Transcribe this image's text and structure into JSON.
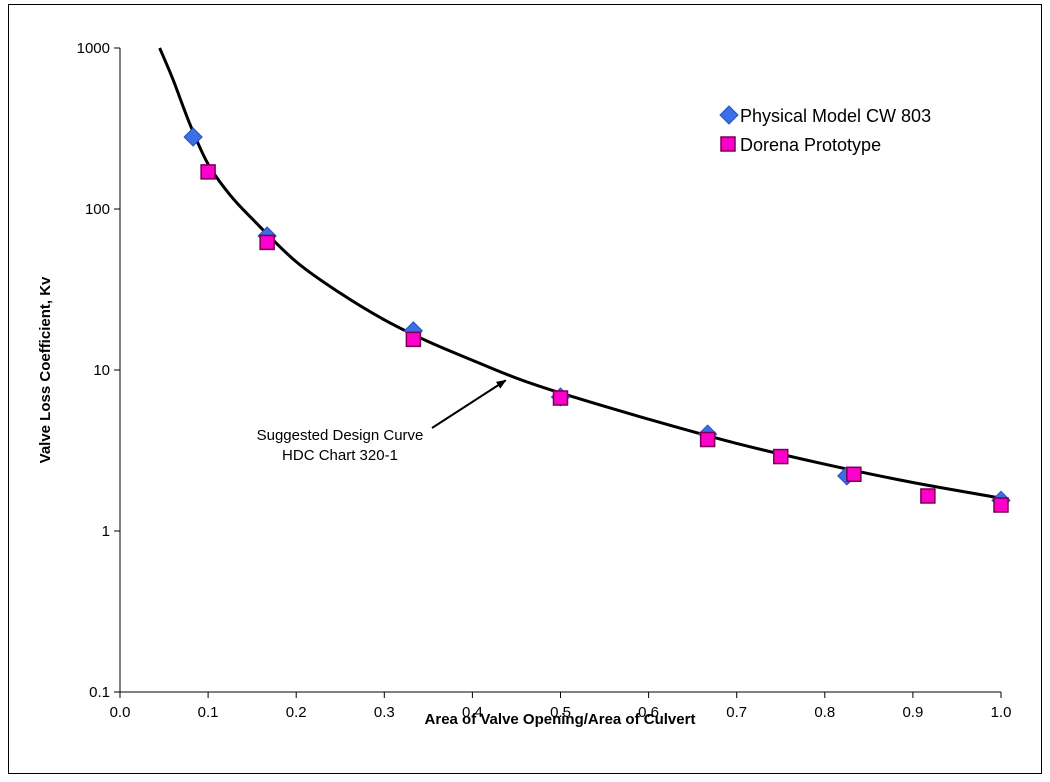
{
  "chart_data": {
    "type": "scatter",
    "xlabel": "Area of Valve Opening/Area of Culvert",
    "ylabel": "Valve Loss Coefficient, Kv",
    "xlim": [
      0.0,
      1.0
    ],
    "ylim": [
      0.1,
      1000
    ],
    "yscale": "log",
    "grid": false,
    "legend_position": "top-right",
    "xticks": [
      "0.0",
      "0.1",
      "0.2",
      "0.3",
      "0.4",
      "0.5",
      "0.6",
      "0.7",
      "0.8",
      "0.9",
      "1.0"
    ],
    "yticks": [
      "0.1",
      "1",
      "10",
      "100",
      "1000"
    ],
    "series": [
      {
        "name": "Physical Model CW 803",
        "marker": "diamond",
        "color": "#3a6fe6",
        "points": [
          {
            "x": 0.083,
            "y": 280
          },
          {
            "x": 0.167,
            "y": 68
          },
          {
            "x": 0.333,
            "y": 17.5
          },
          {
            "x": 0.5,
            "y": 6.8
          },
          {
            "x": 0.667,
            "y": 4.0
          },
          {
            "x": 0.825,
            "y": 2.2
          },
          {
            "x": 1.0,
            "y": 1.55
          }
        ]
      },
      {
        "name": "Dorena Prototype",
        "marker": "square",
        "color": "#ff00cc",
        "points": [
          {
            "x": 0.1,
            "y": 170
          },
          {
            "x": 0.167,
            "y": 62
          },
          {
            "x": 0.333,
            "y": 15.5
          },
          {
            "x": 0.5,
            "y": 6.7
          },
          {
            "x": 0.667,
            "y": 3.7
          },
          {
            "x": 0.75,
            "y": 2.9
          },
          {
            "x": 0.833,
            "y": 2.25
          },
          {
            "x": 0.917,
            "y": 1.65
          },
          {
            "x": 1.0,
            "y": 1.45
          }
        ]
      }
    ],
    "curve": {
      "points": [
        {
          "x": 0.045,
          "y": 1000
        },
        {
          "x": 0.06,
          "y": 640
        },
        {
          "x": 0.08,
          "y": 330
        },
        {
          "x": 0.1,
          "y": 190
        },
        {
          "x": 0.125,
          "y": 122
        },
        {
          "x": 0.15,
          "y": 87
        },
        {
          "x": 0.2,
          "y": 47
        },
        {
          "x": 0.25,
          "y": 30
        },
        {
          "x": 0.3,
          "y": 20.5
        },
        {
          "x": 0.35,
          "y": 15
        },
        {
          "x": 0.4,
          "y": 11.5
        },
        {
          "x": 0.45,
          "y": 8.9
        },
        {
          "x": 0.5,
          "y": 7.2
        },
        {
          "x": 0.6,
          "y": 4.95
        },
        {
          "x": 0.7,
          "y": 3.5
        },
        {
          "x": 0.8,
          "y": 2.6
        },
        {
          "x": 0.9,
          "y": 2.0
        },
        {
          "x": 1.0,
          "y": 1.6
        }
      ]
    },
    "annotation": {
      "lines": [
        "Suggested Design Curve",
        "HDC Chart 320-1"
      ],
      "arrow_to": {
        "x": 0.44,
        "y": 9.0
      }
    }
  }
}
